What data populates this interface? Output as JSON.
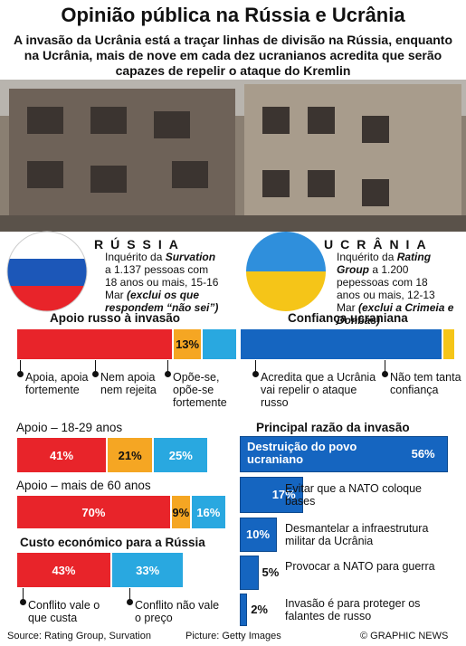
{
  "header": {
    "title": "Opinião pública na Rússia e Ucrânia",
    "subtitle": "A invasão da Ucrânia está a traçar linhas de divisão na Rússia, enquanto na Ucrânia, mais de nove em cada dez ucranianos acredita que serão capazes de repelir o ataque do Kremlin"
  },
  "russia": {
    "name": "RÚSSIA",
    "survey": [
      "Inquérito da ",
      "Survation",
      " a 1.137 pessoas com 18 anos ou mais, 15-16 Mar ",
      "(exclui os que respondem “não sei”)"
    ]
  },
  "ukraine": {
    "name": "UCRÂNIA",
    "survey": [
      "Inquérito da ",
      "Rating Group",
      " a 1.200 pepessoas com 18 anos ou mais, 12-13 Mar ",
      "(exclui a Crimeia e Donbas)"
    ]
  },
  "chart_data": [
    {
      "type": "stacked-bar",
      "title": "Apoio russo à invasão",
      "xlim": [
        0,
        100
      ],
      "series": [
        {
          "name": "Apoia, apoia fortemente",
          "color": "#e8242a",
          "values": [
            71
          ]
        },
        {
          "name": "Nem apoia nem rejeita",
          "color": "#f5a623",
          "values": [
            13
          ],
          "value_labels": [
            "13%"
          ]
        },
        {
          "name": "Opõe-se, opõe-se fortemente",
          "color": "#29a8e0",
          "values": [
            16
          ]
        }
      ]
    },
    {
      "type": "stacked-bar",
      "title": "Confiança ucraniana",
      "xlim": [
        0,
        100
      ],
      "series": [
        {
          "name": "Acredita que a Ucrânia vai repelir o ataque russo",
          "color": "#1565c0",
          "values": [
            94
          ]
        },
        {
          "name": "Não tem tanta confiança",
          "color": "#f5c518",
          "values": [
            6
          ]
        }
      ]
    },
    {
      "type": "stacked-bar",
      "title": "Apoio – 18-29 anos",
      "xlim": [
        0,
        100
      ],
      "series": [
        {
          "color": "#e8242a",
          "values": [
            41
          ],
          "value_labels": [
            "41%"
          ]
        },
        {
          "color": "#f5a623",
          "values": [
            21
          ],
          "value_labels": [
            "21%"
          ]
        },
        {
          "color": "#29a8e0",
          "values": [
            25
          ],
          "value_labels": [
            "25%"
          ]
        }
      ]
    },
    {
      "type": "stacked-bar",
      "title": "Apoio – mais de 60 anos",
      "xlim": [
        0,
        100
      ],
      "series": [
        {
          "color": "#e8242a",
          "values": [
            70
          ],
          "value_labels": [
            "70%"
          ]
        },
        {
          "color": "#f5a623",
          "values": [
            9
          ],
          "value_labels": [
            "9%"
          ]
        },
        {
          "color": "#29a8e0",
          "values": [
            16
          ],
          "value_labels": [
            "16%"
          ]
        }
      ]
    },
    {
      "type": "stacked-bar",
      "title": "Custo económico para a Rússia",
      "xlim": [
        0,
        100
      ],
      "series": [
        {
          "name": "Conflito vale o que custa",
          "color": "#e8242a",
          "values": [
            43
          ],
          "value_labels": [
            "43%"
          ]
        },
        {
          "name": "Conflito não vale o preço",
          "color": "#29a8e0",
          "values": [
            33
          ],
          "value_labels": [
            "33%"
          ]
        }
      ]
    },
    {
      "type": "bar",
      "title": "Principal razão da invasão",
      "xlim": [
        0,
        100
      ],
      "color": "#1565c0",
      "categories": [
        "Destruição do povo ucraniano",
        "Evitar que a NATO coloque bases",
        "Desmantelar a infraestrutura militar da Ucrânia",
        "Provocar a NATO para guerra",
        "Invasão é para proteger os falantes de russo"
      ],
      "values": [
        56,
        17,
        10,
        5,
        2
      ],
      "value_labels": [
        "56%",
        "17%",
        "10%",
        "5%",
        "2%"
      ]
    }
  ],
  "footer": {
    "source": "Source: Rating Group, Survation",
    "picture": "Picture: Getty Images",
    "copyright": "© GRAPHIC NEWS"
  }
}
